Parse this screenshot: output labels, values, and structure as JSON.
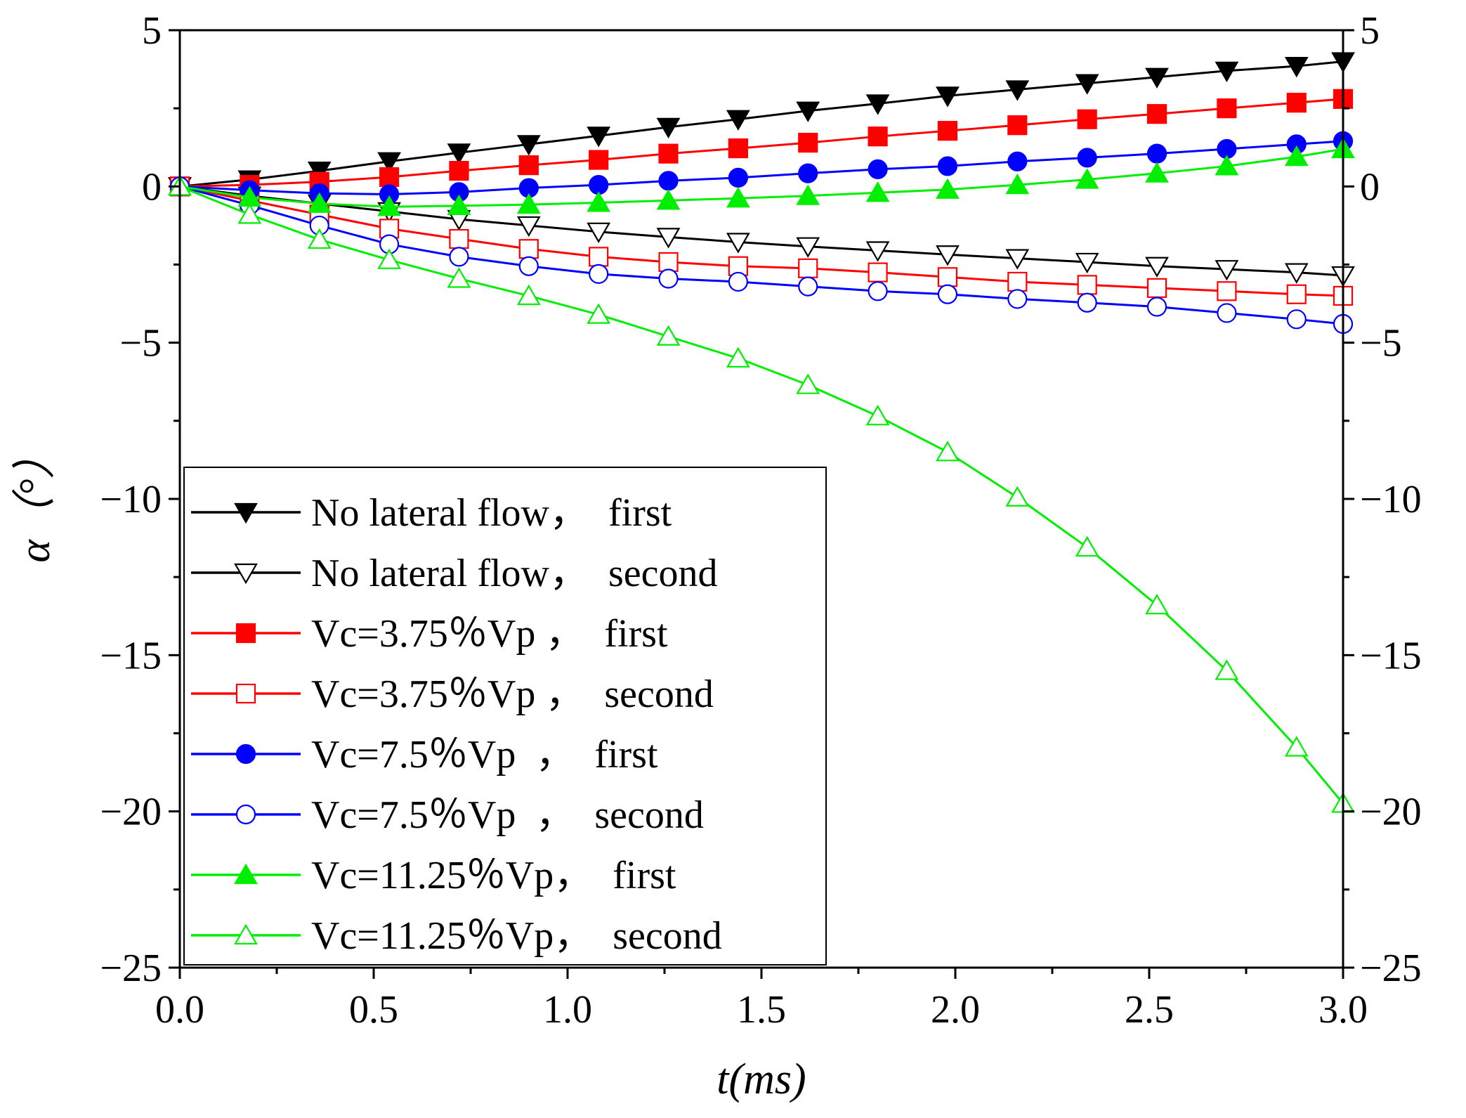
{
  "chart_data": {
    "type": "line",
    "title": "",
    "xlabel": "t(ms)",
    "ylabel": "α（°）",
    "xlim": [
      0.0,
      3.0
    ],
    "ylim": [
      -25,
      5
    ],
    "xticks": [
      0.0,
      0.5,
      1.0,
      1.5,
      2.0,
      2.5,
      3.0
    ],
    "xtick_labels": [
      "0.0",
      "0.5",
      "1.0",
      "1.5",
      "2.0",
      "2.5",
      "3.0"
    ],
    "yticks": [
      5,
      0,
      -5,
      -10,
      -15,
      -20,
      -25
    ],
    "ytick_labels_left": [
      "5",
      "0",
      "−5",
      "−10",
      "−15",
      "−20",
      "−25"
    ],
    "ytick_labels_right": [
      "5",
      "0",
      "−5",
      "−10",
      "−15",
      "−20",
      "−25"
    ],
    "grid": false,
    "legend_position": "lower-left",
    "x": [
      0.0,
      0.18,
      0.36,
      0.54,
      0.72,
      0.9,
      1.08,
      1.26,
      1.44,
      1.62,
      1.8,
      1.98,
      2.16,
      2.34,
      2.52,
      2.7,
      2.88,
      3.0
    ],
    "series": [
      {
        "name": "No lateral flow",
        "label": "No lateral flow，  first",
        "color": "#000000",
        "marker": "triangle-down",
        "filled": true,
        "values": [
          0.0,
          0.22,
          0.5,
          0.8,
          1.08,
          1.35,
          1.62,
          1.9,
          2.15,
          2.42,
          2.65,
          2.9,
          3.1,
          3.3,
          3.5,
          3.7,
          3.85,
          4.0
        ]
      },
      {
        "name": "No lateral flow",
        "label": "No lateral flow，  second",
        "color": "#000000",
        "marker": "triangle-down",
        "filled": false,
        "values": [
          0.0,
          -0.3,
          -0.55,
          -0.8,
          -1.05,
          -1.25,
          -1.45,
          -1.62,
          -1.78,
          -1.92,
          -2.05,
          -2.18,
          -2.3,
          -2.42,
          -2.55,
          -2.65,
          -2.75,
          -2.85
        ]
      },
      {
        "name": "Vc=3.75%Vp",
        "label": "Vc=3.75％Vp ，  first",
        "color": "#ff0000",
        "marker": "square",
        "filled": true,
        "values": [
          0.0,
          0.05,
          0.15,
          0.3,
          0.5,
          0.68,
          0.85,
          1.05,
          1.22,
          1.4,
          1.6,
          1.78,
          1.96,
          2.15,
          2.32,
          2.5,
          2.68,
          2.8
        ]
      },
      {
        "name": "Vc=3.75%Vp",
        "label": "Vc=3.75％Vp ，  second",
        "color": "#ff0000",
        "marker": "square",
        "filled": false,
        "values": [
          0.0,
          -0.45,
          -0.9,
          -1.35,
          -1.68,
          -2.0,
          -2.25,
          -2.42,
          -2.55,
          -2.62,
          -2.75,
          -2.9,
          -3.05,
          -3.15,
          -3.25,
          -3.35,
          -3.45,
          -3.5
        ]
      },
      {
        "name": "Vc=7.5%Vp",
        "label": "Vc=7.5％Vp  ，  first",
        "color": "#0000ff",
        "marker": "circle",
        "filled": true,
        "values": [
          0.0,
          -0.12,
          -0.22,
          -0.25,
          -0.18,
          -0.05,
          0.05,
          0.18,
          0.28,
          0.42,
          0.55,
          0.65,
          0.8,
          0.92,
          1.05,
          1.2,
          1.35,
          1.45
        ]
      },
      {
        "name": "Vc=7.5%Vp",
        "label": "Vc=7.5％Vp  ，  second",
        "color": "#0000ff",
        "marker": "circle",
        "filled": false,
        "values": [
          0.0,
          -0.6,
          -1.25,
          -1.85,
          -2.25,
          -2.55,
          -2.8,
          -2.95,
          -3.05,
          -3.2,
          -3.35,
          -3.45,
          -3.6,
          -3.72,
          -3.85,
          -4.05,
          -4.25,
          -4.4
        ]
      },
      {
        "name": "Vc=11.25%Vp",
        "label": "Vc=11.25％Vp，  first",
        "color": "#00ee00",
        "marker": "triangle-up",
        "filled": true,
        "values": [
          0.0,
          -0.35,
          -0.55,
          -0.65,
          -0.62,
          -0.58,
          -0.52,
          -0.45,
          -0.38,
          -0.3,
          -0.2,
          -0.1,
          0.05,
          0.22,
          0.42,
          0.65,
          0.95,
          1.2
        ]
      },
      {
        "name": "Vc=11.25%Vp",
        "label": "Vc=11.25％Vp，  second",
        "color": "#00ee00",
        "marker": "triangle-up",
        "filled": false,
        "values": [
          0.0,
          -0.9,
          -1.7,
          -2.35,
          -2.95,
          -3.5,
          -4.1,
          -4.8,
          -5.5,
          -6.35,
          -7.35,
          -8.5,
          -9.95,
          -11.55,
          -13.4,
          -15.5,
          -17.95,
          -19.75
        ]
      }
    ]
  }
}
